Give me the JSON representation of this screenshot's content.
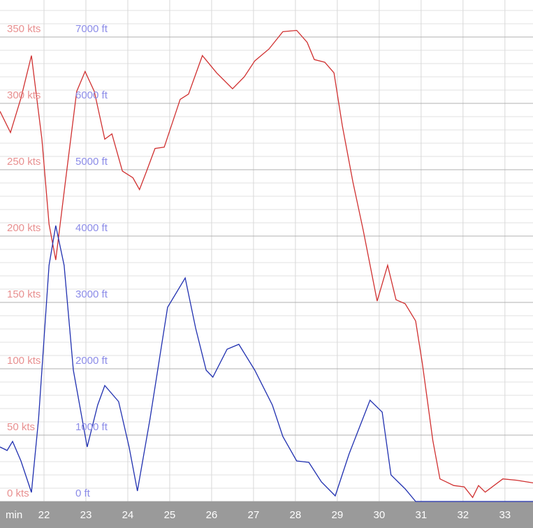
{
  "chart_data": {
    "type": "line",
    "x_unit_label": "min",
    "xlim": [
      20.95,
      33.67
    ],
    "xticks": [
      22,
      23,
      24,
      25,
      26,
      27,
      28,
      29,
      30,
      31,
      32,
      33
    ],
    "ylim": [
      0,
      377.9
    ],
    "yticks": [
      {
        "value": 0,
        "label": "0 kts"
      },
      {
        "value": 50,
        "label": "50 kts"
      },
      {
        "value": 100,
        "label": "100 kts"
      },
      {
        "value": 150,
        "label": "150 kts"
      },
      {
        "value": 200,
        "label": "200 kts"
      },
      {
        "value": 250,
        "label": "250 kts"
      },
      {
        "value": 300,
        "label": "300 kts"
      },
      {
        "value": 350,
        "label": "350 kts"
      }
    ],
    "yminorticks": [
      10,
      20,
      30,
      40,
      60,
      70,
      80,
      90,
      110,
      120,
      130,
      140,
      160,
      170,
      180,
      190,
      210,
      220,
      230,
      240,
      260,
      270,
      280,
      290,
      310,
      320,
      330,
      340,
      360,
      370
    ],
    "y2lim": [
      0,
      7558
    ],
    "y2ticks": [
      {
        "value": 0,
        "label": "0 ft"
      },
      {
        "value": 1000,
        "label": "1000 ft"
      },
      {
        "value": 2000,
        "label": "2000 ft"
      },
      {
        "value": 3000,
        "label": "3000 ft"
      },
      {
        "value": 4000,
        "label": "4000 ft"
      },
      {
        "value": 5000,
        "label": "5000 ft"
      },
      {
        "value": 6000,
        "label": "6000 ft"
      },
      {
        "value": 7000,
        "label": "7000 ft"
      }
    ],
    "grid": true,
    "series": [
      {
        "color": "#d03030",
        "x": [
          20.95,
          21.2,
          21.45,
          21.7,
          21.95,
          22.12,
          22.28,
          22.53,
          22.78,
          22.98,
          23.2,
          23.45,
          23.62,
          23.87,
          24.12,
          24.28,
          24.45,
          24.65,
          24.87,
          25.25,
          25.45,
          25.78,
          26.12,
          26.5,
          26.78,
          27.03,
          27.37,
          27.7,
          28.03,
          28.28,
          28.45,
          28.7,
          28.92,
          29.12,
          29.37,
          29.62,
          29.95,
          30.2,
          30.4,
          30.62,
          30.87,
          31.03,
          31.28,
          31.45,
          31.78,
          32.03,
          32.23,
          32.37,
          32.53,
          32.95,
          33.28,
          33.67
        ],
        "values": [
          294,
          278,
          304,
          336,
          273,
          209,
          182,
          246,
          309,
          324,
          309,
          273,
          277,
          249,
          244,
          235,
          249,
          266,
          267,
          303,
          307,
          336,
          323,
          311,
          320,
          332,
          341,
          354,
          355,
          346,
          333,
          331,
          323,
          283,
          241,
          204,
          151,
          178,
          152,
          149,
          136,
          104,
          46,
          17,
          12,
          11,
          3,
          12,
          7,
          17,
          16,
          14
        ]
      },
      {
        "color": "#2030b0",
        "axis": "y2",
        "x": [
          20.95,
          21.12,
          21.25,
          21.45,
          21.7,
          21.87,
          22.12,
          22.28,
          22.48,
          22.7,
          23.03,
          23.28,
          23.45,
          23.78,
          24.03,
          24.23,
          24.53,
          24.95,
          25.37,
          25.62,
          25.87,
          26.03,
          26.37,
          26.65,
          27.03,
          27.45,
          27.7,
          28.03,
          28.32,
          28.62,
          28.95,
          29.28,
          29.78,
          30.07,
          30.28,
          30.62,
          30.87,
          33.67
        ],
        "values": [
          821,
          768,
          905,
          611,
          137,
          1242,
          3558,
          4158,
          3558,
          1979,
          821,
          1453,
          1747,
          1505,
          821,
          158,
          1242,
          2926,
          3368,
          2611,
          1979,
          1874,
          2295,
          2368,
          1979,
          1453,
          979,
          611,
          589,
          295,
          84,
          716,
          1526,
          1347,
          400,
          189,
          0,
          0
        ]
      }
    ]
  }
}
